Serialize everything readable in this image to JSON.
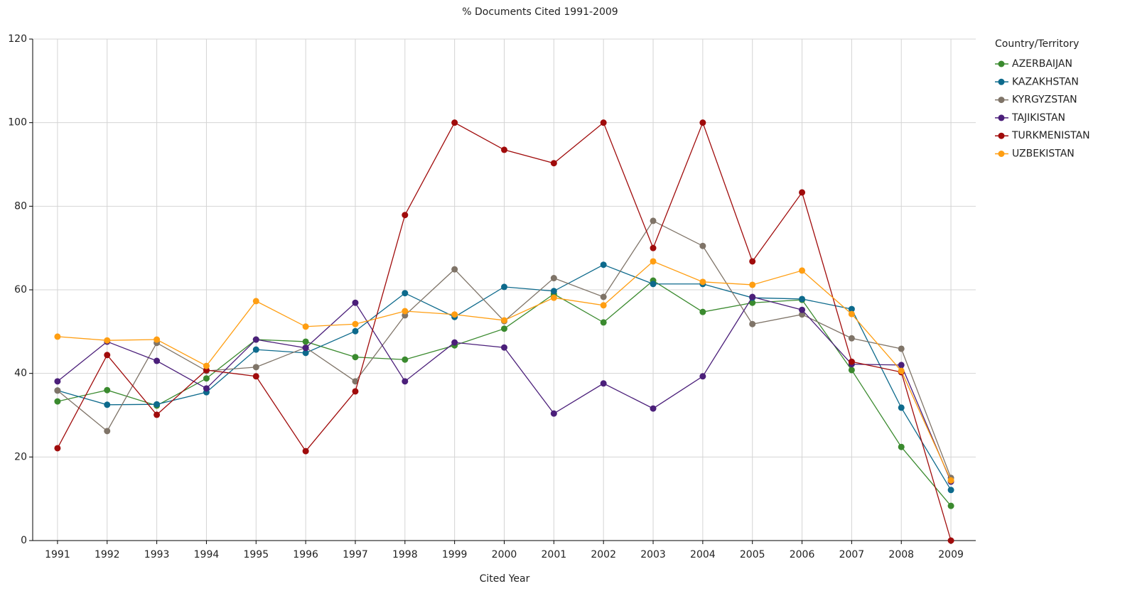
{
  "chart_data": {
    "type": "line",
    "title": "% Documents Cited 1991-2009",
    "x_label": "Cited Year",
    "legend_title": "Country/Territory",
    "categories": [
      "1991",
      "1992",
      "1993",
      "1994",
      "1995",
      "1996",
      "1997",
      "1998",
      "1999",
      "2000",
      "2001",
      "2002",
      "2003",
      "2004",
      "2005",
      "2006",
      "2007",
      "2008",
      "2009"
    ],
    "series": [
      {
        "name": "AZERBAIJAN",
        "color": "#3a8a2e",
        "values": [
          33.3,
          36,
          32.3,
          38.8,
          48.1,
          47.6,
          43.9,
          43.3,
          46.7,
          50.7,
          59,
          52.2,
          62.2,
          54.7,
          56.9,
          57.6,
          40.8,
          22.4,
          8.3
        ]
      },
      {
        "name": "KAZAKHSTAN",
        "color": "#0d6a8c",
        "values": [
          35.9,
          32.5,
          32.6,
          35.5,
          45.7,
          44.9,
          50.1,
          59.2,
          53.5,
          60.7,
          59.7,
          66,
          61.4,
          61.4,
          58.1,
          57.8,
          55.4,
          31.8,
          12.1
        ]
      },
      {
        "name": "KYRGYZSTAN",
        "color": "#7f7468",
        "values": [
          35.9,
          26.2,
          47.3,
          40.6,
          41.5,
          46.2,
          38.1,
          53.9,
          64.9,
          52.5,
          62.8,
          58.3,
          76.5,
          70.5,
          51.8,
          54.1,
          48.4,
          45.9,
          15
        ]
      },
      {
        "name": "TAJIKISTAN",
        "color": "#4b1f7a",
        "values": [
          38.1,
          47.6,
          43,
          36.4,
          48.1,
          46.1,
          56.9,
          38.1,
          47.4,
          46.2,
          30.4,
          37.6,
          31.6,
          39.3,
          58.3,
          55.2,
          42.2,
          42,
          14.1
        ]
      },
      {
        "name": "TURKMENISTAN",
        "color": "#a00b0b",
        "values": [
          22.1,
          44.4,
          30.1,
          40.8,
          39.3,
          21.4,
          35.7,
          77.9,
          100,
          93.5,
          90.3,
          100,
          70,
          100,
          66.8,
          83.3,
          42.8,
          40.3,
          0
        ]
      },
      {
        "name": "UZBEKISTAN",
        "color": "#ff9e12",
        "values": [
          48.8,
          47.9,
          48.1,
          41.8,
          57.3,
          51.2,
          51.8,
          54.9,
          54.1,
          52.7,
          58.1,
          56.3,
          66.8,
          61.9,
          61.2,
          64.6,
          54.2,
          40.6,
          14.4
        ]
      }
    ],
    "ylim": [
      0,
      120
    ],
    "yticks": [
      0,
      20,
      40,
      60,
      80,
      100,
      120
    ],
    "grid": true,
    "legend": "right"
  }
}
